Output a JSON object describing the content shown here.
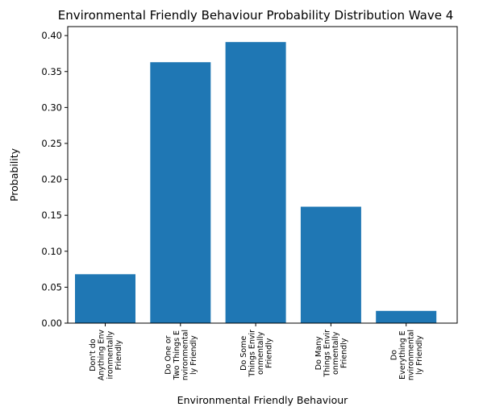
{
  "chart_data": {
    "type": "bar",
    "title": "Environmental Friendly Behaviour Probability Distribution Wave 4",
    "xlabel": "Environmental Friendly Behaviour",
    "ylabel": "Probability",
    "categories": [
      [
        "Don't do",
        "Anything Env",
        "ironmentally",
        "Friendly"
      ],
      [
        "Do One or",
        "Two Things E",
        "nvironmental",
        "ly Friendly"
      ],
      [
        "Do Some",
        "Things Envir",
        "onmentally",
        "Friendly"
      ],
      [
        "Do Many",
        "Things Envir",
        "onmentally",
        "Friendly"
      ],
      [
        "Do",
        "Everything E",
        "nvironmental",
        "ly Friendly"
      ]
    ],
    "values": [
      0.068,
      0.363,
      0.391,
      0.162,
      0.017
    ],
    "ylim": [
      0,
      0.4125
    ],
    "yticks": [
      "0.00",
      "0.05",
      "0.10",
      "0.15",
      "0.20",
      "0.25",
      "0.30",
      "0.35",
      "0.40"
    ],
    "bar_color": "#1f77b4",
    "grid": false
  }
}
